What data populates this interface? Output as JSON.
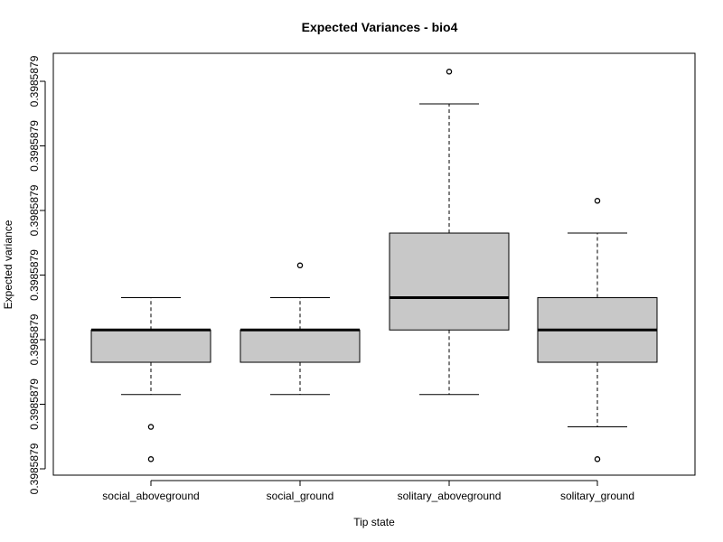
{
  "chart_data": {
    "type": "boxplot",
    "title": "Expected Variances - bio4",
    "xlabel": "Tip state",
    "ylabel": "Expected variance",
    "categories": [
      "social_aboveground",
      "social_ground",
      "solitary_aboveground",
      "solitary_ground"
    ],
    "y_tick_labels": [
      "0.3985879",
      "0.3985879",
      "0.3985879",
      "0.3985879",
      "0.3985879",
      "0.3985879",
      "0.3985879"
    ],
    "y_tick_level": [
      0,
      1,
      2,
      3,
      4,
      5,
      6
    ],
    "ylim": [
      -0.1,
      6.45
    ],
    "level_note": "Values expressed in ordinal tick levels (0..6) of the printed 0.3985879 tick marks.",
    "boxes": [
      {
        "category": "social_aboveground",
        "whisker_low": 1.15,
        "q1": 1.65,
        "median": 2.15,
        "q3": 2.15,
        "whisker_high": 2.65,
        "outliers": [
          0.65,
          0.15
        ]
      },
      {
        "category": "social_ground",
        "whisker_low": 1.15,
        "q1": 1.65,
        "median": 2.15,
        "q3": 2.15,
        "whisker_high": 2.65,
        "outliers": [
          3.15
        ]
      },
      {
        "category": "solitary_aboveground",
        "whisker_low": 1.15,
        "q1": 2.15,
        "median": 2.65,
        "q3": 3.65,
        "whisker_high": 5.65,
        "outliers": [
          6.15
        ]
      },
      {
        "category": "solitary_ground",
        "whisker_low": 0.65,
        "q1": 1.65,
        "median": 2.15,
        "q3": 2.65,
        "whisker_high": 3.65,
        "outliers": [
          4.15,
          0.15
        ]
      }
    ],
    "colors": {
      "box_fill": "#c8c8c8",
      "stroke": "#000000"
    },
    "grid": false,
    "legend": "none"
  }
}
